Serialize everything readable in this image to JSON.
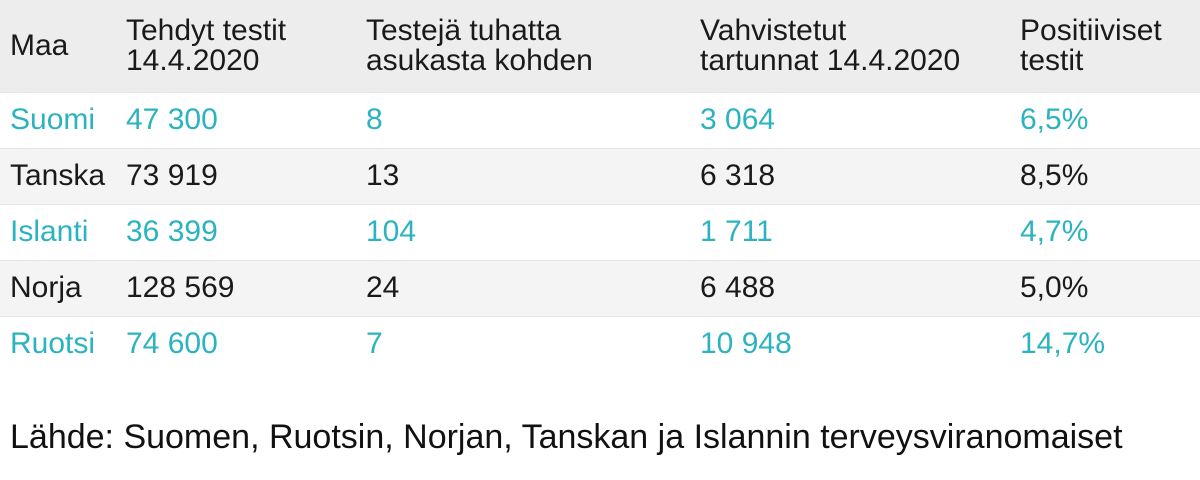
{
  "chart_data": {
    "type": "table",
    "columns": [
      [
        "Maa"
      ],
      [
        "Tehdyt testit",
        "14.4.2020"
      ],
      [
        "Testejä tuhatta",
        "asukasta kohden"
      ],
      [
        "Vahvistetut",
        "tartunnat 14.4.2020"
      ],
      [
        "Positiiviset",
        "testit"
      ]
    ],
    "rows": [
      [
        "Suomi",
        "47 300",
        "8",
        "3 064",
        "6,5%"
      ],
      [
        "Tanska",
        "73 919",
        "13",
        "6 318",
        "8,5%"
      ],
      [
        "Islanti",
        "36 399",
        "104",
        "1 711",
        "4,7%"
      ],
      [
        "Norja",
        "128 569",
        "24",
        "6 488",
        "5,0%"
      ],
      [
        "Ruotsi",
        "74 600",
        "7",
        "10 948",
        "14,7%"
      ]
    ]
  },
  "source": "Lähde: Suomen, Ruotsin, Norjan, Tanskan ja Islannin terveysviranomaiset",
  "colors": {
    "accent_text": "#2bb3c0",
    "header_bg": "#ededed",
    "alt_row_bg": "#f4f4f4"
  }
}
